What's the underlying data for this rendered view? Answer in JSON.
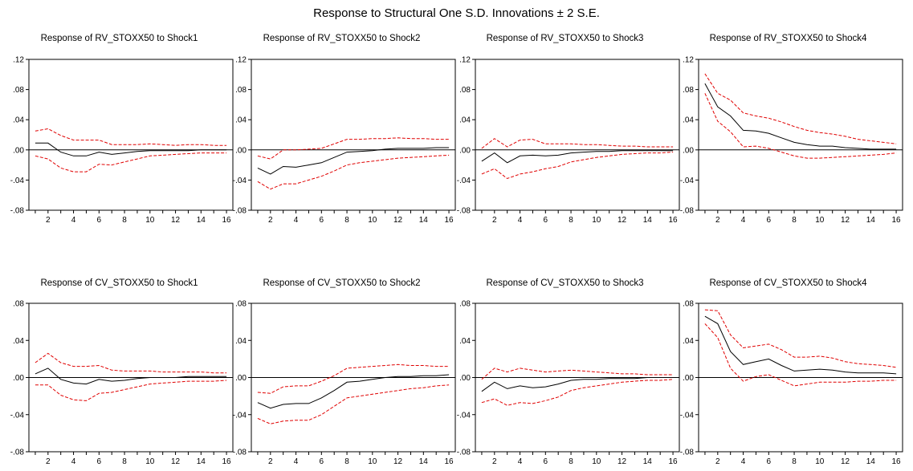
{
  "title": "Response to Structural One S.D. Innovations ± 2 S.E.",
  "colors": {
    "response": "#000000",
    "bands": "#e00000",
    "zero_line": "#000000",
    "frame": "#000000"
  },
  "chart_data": [
    {
      "type": "line",
      "title": "Response of RV_STOXX50 to Shock1",
      "x": [
        1,
        2,
        3,
        4,
        5,
        6,
        7,
        8,
        9,
        10,
        11,
        12,
        13,
        14,
        15,
        16
      ],
      "xticks": [
        2,
        4,
        6,
        8,
        10,
        12,
        14,
        16
      ],
      "ylim": [
        -0.08,
        0.12
      ],
      "yticks": [
        ".12",
        ".08",
        ".04",
        ".00",
        "-.04",
        "-.08"
      ],
      "grid": false,
      "series": [
        {
          "values": [
            0.009,
            0.009,
            -0.003,
            -0.008,
            -0.008,
            -0.003,
            -0.006,
            -0.004,
            -0.002,
            -0.001,
            -0.001,
            -0.001,
            -0.001,
            0.0,
            0.0,
            0.0
          ]
        },
        {
          "values": [
            0.025,
            0.028,
            0.019,
            0.013,
            0.013,
            0.013,
            0.007,
            0.007,
            0.007,
            0.008,
            0.007,
            0.006,
            0.007,
            0.007,
            0.006,
            0.006
          ]
        },
        {
          "values": [
            -0.008,
            -0.012,
            -0.024,
            -0.029,
            -0.029,
            -0.019,
            -0.02,
            -0.016,
            -0.012,
            -0.008,
            -0.007,
            -0.006,
            -0.005,
            -0.004,
            -0.004,
            -0.004
          ]
        }
      ]
    },
    {
      "type": "line",
      "title": "Response of RV_STOXX50 to Shock2",
      "x": [
        1,
        2,
        3,
        4,
        5,
        6,
        7,
        8,
        9,
        10,
        11,
        12,
        13,
        14,
        15,
        16
      ],
      "xticks": [
        2,
        4,
        6,
        8,
        10,
        12,
        14,
        16
      ],
      "ylim": [
        -0.08,
        0.12
      ],
      "yticks": [
        ".12",
        ".08",
        ".04",
        ".00",
        "-.04",
        "-.08"
      ],
      "grid": false,
      "series": [
        {
          "values": [
            -0.024,
            -0.032,
            -0.022,
            -0.023,
            -0.02,
            -0.017,
            -0.01,
            -0.003,
            -0.002,
            -0.001,
            0.001,
            0.002,
            0.002,
            0.002,
            0.003,
            0.003
          ]
        },
        {
          "values": [
            -0.008,
            -0.012,
            0.0,
            0.0,
            0.001,
            0.002,
            0.008,
            0.014,
            0.014,
            0.015,
            0.015,
            0.016,
            0.015,
            0.015,
            0.014,
            0.014
          ]
        },
        {
          "values": [
            -0.042,
            -0.052,
            -0.045,
            -0.045,
            -0.04,
            -0.035,
            -0.028,
            -0.02,
            -0.017,
            -0.015,
            -0.013,
            -0.011,
            -0.01,
            -0.009,
            -0.008,
            -0.007
          ]
        }
      ]
    },
    {
      "type": "line",
      "title": "Response of RV_STOXX50 to Shock3",
      "x": [
        1,
        2,
        3,
        4,
        5,
        6,
        7,
        8,
        9,
        10,
        11,
        12,
        13,
        14,
        15,
        16
      ],
      "xticks": [
        2,
        4,
        6,
        8,
        10,
        12,
        14,
        16
      ],
      "ylim": [
        -0.08,
        0.12
      ],
      "yticks": [
        ".12",
        ".08",
        ".04",
        ".00",
        "-.04",
        "-.08"
      ],
      "grid": false,
      "series": [
        {
          "values": [
            -0.015,
            -0.004,
            -0.017,
            -0.008,
            -0.007,
            -0.008,
            -0.007,
            -0.004,
            -0.003,
            -0.002,
            -0.002,
            -0.001,
            -0.001,
            -0.001,
            -0.001,
            -0.001
          ]
        },
        {
          "values": [
            0.002,
            0.015,
            0.004,
            0.013,
            0.014,
            0.008,
            0.008,
            0.008,
            0.007,
            0.007,
            0.006,
            0.005,
            0.005,
            0.004,
            0.004,
            0.004
          ]
        },
        {
          "values": [
            -0.032,
            -0.025,
            -0.038,
            -0.032,
            -0.029,
            -0.025,
            -0.022,
            -0.016,
            -0.013,
            -0.01,
            -0.008,
            -0.006,
            -0.005,
            -0.004,
            -0.004,
            -0.003
          ]
        }
      ]
    },
    {
      "type": "line",
      "title": "Response of RV_STOXX50 to Shock4",
      "x": [
        1,
        2,
        3,
        4,
        5,
        6,
        7,
        8,
        9,
        10,
        11,
        12,
        13,
        14,
        15,
        16
      ],
      "xticks": [
        2,
        4,
        6,
        8,
        10,
        12,
        14,
        16
      ],
      "ylim": [
        -0.08,
        0.12
      ],
      "yticks": [
        ".12",
        ".08",
        ".04",
        ".00",
        "-.04",
        "-.08"
      ],
      "grid": false,
      "series": [
        {
          "values": [
            0.088,
            0.057,
            0.045,
            0.026,
            0.025,
            0.022,
            0.016,
            0.01,
            0.007,
            0.005,
            0.005,
            0.003,
            0.002,
            0.001,
            0.001,
            0.001
          ]
        },
        {
          "values": [
            0.101,
            0.075,
            0.066,
            0.049,
            0.045,
            0.042,
            0.037,
            0.031,
            0.026,
            0.023,
            0.021,
            0.018,
            0.014,
            0.012,
            0.01,
            0.008
          ]
        },
        {
          "values": [
            0.075,
            0.038,
            0.024,
            0.004,
            0.005,
            0.002,
            -0.003,
            -0.008,
            -0.011,
            -0.011,
            -0.01,
            -0.009,
            -0.008,
            -0.007,
            -0.006,
            -0.004
          ]
        }
      ]
    },
    {
      "type": "line",
      "title": "Response of CV_STOXX50 to Shock1",
      "x": [
        1,
        2,
        3,
        4,
        5,
        6,
        7,
        8,
        9,
        10,
        11,
        12,
        13,
        14,
        15,
        16
      ],
      "xticks": [
        2,
        4,
        6,
        8,
        10,
        12,
        14,
        16
      ],
      "ylim": [
        -0.08,
        0.08
      ],
      "yticks": [
        ".08",
        ".04",
        ".00",
        "-.04",
        "-.08"
      ],
      "grid": false,
      "series": [
        {
          "values": [
            0.004,
            0.01,
            -0.002,
            -0.006,
            -0.007,
            -0.002,
            -0.004,
            -0.003,
            -0.001,
            0.0,
            0.0,
            0.0,
            0.001,
            0.001,
            0.001,
            0.001
          ]
        },
        {
          "values": [
            0.016,
            0.026,
            0.016,
            0.012,
            0.012,
            0.013,
            0.008,
            0.007,
            0.007,
            0.007,
            0.006,
            0.006,
            0.006,
            0.006,
            0.005,
            0.005
          ]
        },
        {
          "values": [
            -0.008,
            -0.008,
            -0.019,
            -0.024,
            -0.025,
            -0.017,
            -0.016,
            -0.013,
            -0.01,
            -0.007,
            -0.006,
            -0.005,
            -0.004,
            -0.004,
            -0.004,
            -0.003
          ]
        }
      ]
    },
    {
      "type": "line",
      "title": "Response of CV_STOXX50 to Shock2",
      "x": [
        1,
        2,
        3,
        4,
        5,
        6,
        7,
        8,
        9,
        10,
        11,
        12,
        13,
        14,
        15,
        16
      ],
      "xticks": [
        2,
        4,
        6,
        8,
        10,
        12,
        14,
        16
      ],
      "ylim": [
        -0.08,
        0.08
      ],
      "yticks": [
        ".08",
        ".04",
        ".00",
        "-.04",
        "-.08"
      ],
      "grid": false,
      "series": [
        {
          "values": [
            -0.027,
            -0.033,
            -0.029,
            -0.028,
            -0.028,
            -0.022,
            -0.014,
            -0.005,
            -0.004,
            -0.002,
            0.0,
            0.001,
            0.001,
            0.002,
            0.002,
            0.003
          ]
        },
        {
          "values": [
            -0.016,
            -0.017,
            -0.01,
            -0.009,
            -0.009,
            -0.004,
            0.002,
            0.01,
            0.011,
            0.012,
            0.013,
            0.014,
            0.013,
            0.013,
            0.012,
            0.012
          ]
        },
        {
          "values": [
            -0.044,
            -0.05,
            -0.047,
            -0.046,
            -0.046,
            -0.04,
            -0.031,
            -0.022,
            -0.02,
            -0.018,
            -0.016,
            -0.014,
            -0.012,
            -0.011,
            -0.009,
            -0.008
          ]
        }
      ]
    },
    {
      "type": "line",
      "title": "Response of CV_STOXX50 to Shock3",
      "x": [
        1,
        2,
        3,
        4,
        5,
        6,
        7,
        8,
        9,
        10,
        11,
        12,
        13,
        14,
        15,
        16
      ],
      "xticks": [
        2,
        4,
        6,
        8,
        10,
        12,
        14,
        16
      ],
      "ylim": [
        -0.08,
        0.08
      ],
      "yticks": [
        ".08",
        ".04",
        ".00",
        "-.04",
        "-.08"
      ],
      "grid": false,
      "series": [
        {
          "values": [
            -0.015,
            -0.005,
            -0.012,
            -0.009,
            -0.011,
            -0.01,
            -0.007,
            -0.003,
            -0.002,
            -0.002,
            -0.001,
            -0.001,
            -0.001,
            0.0,
            0.0,
            0.0
          ]
        },
        {
          "values": [
            -0.002,
            0.01,
            0.006,
            0.01,
            0.008,
            0.006,
            0.007,
            0.008,
            0.007,
            0.006,
            0.005,
            0.004,
            0.004,
            0.003,
            0.003,
            0.003
          ]
        },
        {
          "values": [
            -0.027,
            -0.023,
            -0.03,
            -0.027,
            -0.028,
            -0.025,
            -0.021,
            -0.014,
            -0.011,
            -0.009,
            -0.007,
            -0.005,
            -0.004,
            -0.003,
            -0.003,
            -0.002
          ]
        }
      ]
    },
    {
      "type": "line",
      "title": "Response of CV_STOXX50 to Shock4",
      "x": [
        1,
        2,
        3,
        4,
        5,
        6,
        7,
        8,
        9,
        10,
        11,
        12,
        13,
        14,
        15,
        16
      ],
      "xticks": [
        2,
        4,
        6,
        8,
        10,
        12,
        14,
        16
      ],
      "ylim": [
        -0.08,
        0.08
      ],
      "yticks": [
        ".08",
        ".04",
        ".00",
        "-.04",
        "-.08"
      ],
      "grid": false,
      "series": [
        {
          "values": [
            0.066,
            0.058,
            0.028,
            0.014,
            0.017,
            0.02,
            0.013,
            0.007,
            0.008,
            0.009,
            0.008,
            0.006,
            0.005,
            0.005,
            0.005,
            0.004
          ]
        },
        {
          "values": [
            0.073,
            0.072,
            0.046,
            0.032,
            0.034,
            0.036,
            0.03,
            0.022,
            0.022,
            0.023,
            0.021,
            0.017,
            0.015,
            0.014,
            0.013,
            0.011
          ]
        },
        {
          "values": [
            0.058,
            0.043,
            0.01,
            -0.004,
            0.001,
            0.003,
            -0.003,
            -0.009,
            -0.007,
            -0.005,
            -0.005,
            -0.005,
            -0.004,
            -0.004,
            -0.003,
            -0.003
          ]
        }
      ]
    }
  ]
}
